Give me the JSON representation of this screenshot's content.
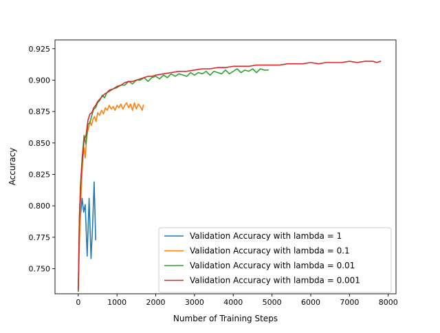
{
  "chart_data": {
    "type": "line",
    "title": "",
    "xlabel": "Number of Training Steps",
    "ylabel": "Accuracy",
    "xlim": [
      -600,
      8200
    ],
    "ylim": [
      0.73,
      0.932
    ],
    "xticks": [
      0,
      1000,
      2000,
      3000,
      4000,
      5000,
      6000,
      7000,
      8000
    ],
    "yticks": [
      0.75,
      0.775,
      0.8,
      0.825,
      0.85,
      0.875,
      0.9,
      0.925
    ],
    "xtick_labels": [
      "0",
      "1000",
      "2000",
      "3000",
      "4000",
      "5000",
      "6000",
      "7000",
      "8000"
    ],
    "ytick_labels": [
      "0.750",
      "0.775",
      "0.800",
      "0.825",
      "0.850",
      "0.875",
      "0.900",
      "0.925"
    ],
    "grid": false,
    "legend_position": "lower-right",
    "series": [
      {
        "name": "Validation Accuracy with lambda = 1",
        "color": "#1f77b4",
        "x": [
          0,
          30,
          60,
          100,
          140,
          180,
          230,
          280,
          330,
          370,
          410,
          450
        ],
        "y": [
          0.732,
          0.776,
          0.793,
          0.806,
          0.795,
          0.801,
          0.76,
          0.806,
          0.758,
          0.784,
          0.819,
          0.773
        ]
      },
      {
        "name": "Validation Accuracy with lambda = 0.1",
        "color": "#ff7f0e",
        "x": [
          0,
          30,
          60,
          90,
          120,
          150,
          180,
          210,
          240,
          270,
          300,
          340,
          380,
          420,
          460,
          500,
          550,
          600,
          650,
          700,
          750,
          800,
          850,
          900,
          950,
          1000,
          1050,
          1100,
          1150,
          1200,
          1250,
          1300,
          1350,
          1400,
          1450,
          1500,
          1550,
          1600,
          1650,
          1680
        ],
        "y": [
          0.733,
          0.77,
          0.8,
          0.822,
          0.839,
          0.846,
          0.838,
          0.852,
          0.859,
          0.862,
          0.867,
          0.864,
          0.869,
          0.871,
          0.867,
          0.874,
          0.872,
          0.876,
          0.873,
          0.878,
          0.876,
          0.88,
          0.877,
          0.879,
          0.876,
          0.88,
          0.878,
          0.881,
          0.877,
          0.88,
          0.882,
          0.878,
          0.881,
          0.876,
          0.882,
          0.877,
          0.881,
          0.879,
          0.876,
          0.88
        ]
      },
      {
        "name": "Validation Accuracy with lambda = 0.01",
        "color": "#2ca02c",
        "x": [
          0,
          30,
          60,
          100,
          150,
          200,
          250,
          300,
          350,
          400,
          450,
          500,
          560,
          620,
          680,
          740,
          800,
          900,
          1000,
          1100,
          1200,
          1300,
          1400,
          1500,
          1600,
          1700,
          1800,
          1900,
          2000,
          2100,
          2200,
          2300,
          2400,
          2500,
          2600,
          2700,
          2800,
          2900,
          3000,
          3100,
          3200,
          3300,
          3400,
          3500,
          3600,
          3700,
          3800,
          3900,
          4000,
          4100,
          4200,
          4300,
          4400,
          4500,
          4600,
          4700,
          4800,
          4900
        ],
        "y": [
          0.733,
          0.79,
          0.818,
          0.838,
          0.856,
          0.849,
          0.865,
          0.866,
          0.872,
          0.877,
          0.878,
          0.882,
          0.884,
          0.888,
          0.886,
          0.89,
          0.891,
          0.893,
          0.894,
          0.896,
          0.896,
          0.899,
          0.897,
          0.9,
          0.9,
          0.902,
          0.899,
          0.902,
          0.903,
          0.901,
          0.904,
          0.902,
          0.905,
          0.903,
          0.905,
          0.904,
          0.903,
          0.906,
          0.904,
          0.906,
          0.905,
          0.907,
          0.904,
          0.907,
          0.906,
          0.905,
          0.908,
          0.905,
          0.907,
          0.909,
          0.906,
          0.908,
          0.907,
          0.909,
          0.906,
          0.909,
          0.908,
          0.908
        ]
      },
      {
        "name": "Validation Accuracy with lambda = 0.001",
        "color": "#d62728",
        "x": [
          0,
          30,
          60,
          100,
          150,
          200,
          250,
          300,
          350,
          400,
          450,
          500,
          560,
          620,
          680,
          740,
          800,
          900,
          1000,
          1100,
          1200,
          1300,
          1400,
          1500,
          1600,
          1700,
          1800,
          1900,
          2000,
          2200,
          2400,
          2600,
          2800,
          3000,
          3200,
          3400,
          3600,
          3800,
          4000,
          4200,
          4400,
          4600,
          4800,
          5000,
          5200,
          5400,
          5600,
          5800,
          6000,
          6200,
          6400,
          6600,
          6800,
          7000,
          7200,
          7400,
          7600,
          7700,
          7800
        ],
        "y": [
          0.733,
          0.792,
          0.815,
          0.834,
          0.852,
          0.856,
          0.868,
          0.873,
          0.874,
          0.878,
          0.88,
          0.883,
          0.885,
          0.887,
          0.889,
          0.89,
          0.892,
          0.893,
          0.895,
          0.896,
          0.898,
          0.899,
          0.899,
          0.9,
          0.901,
          0.902,
          0.903,
          0.903,
          0.904,
          0.905,
          0.906,
          0.907,
          0.907,
          0.908,
          0.909,
          0.909,
          0.91,
          0.91,
          0.911,
          0.911,
          0.911,
          0.912,
          0.912,
          0.912,
          0.912,
          0.913,
          0.913,
          0.913,
          0.914,
          0.913,
          0.914,
          0.914,
          0.914,
          0.915,
          0.914,
          0.915,
          0.915,
          0.914,
          0.915
        ]
      }
    ]
  }
}
